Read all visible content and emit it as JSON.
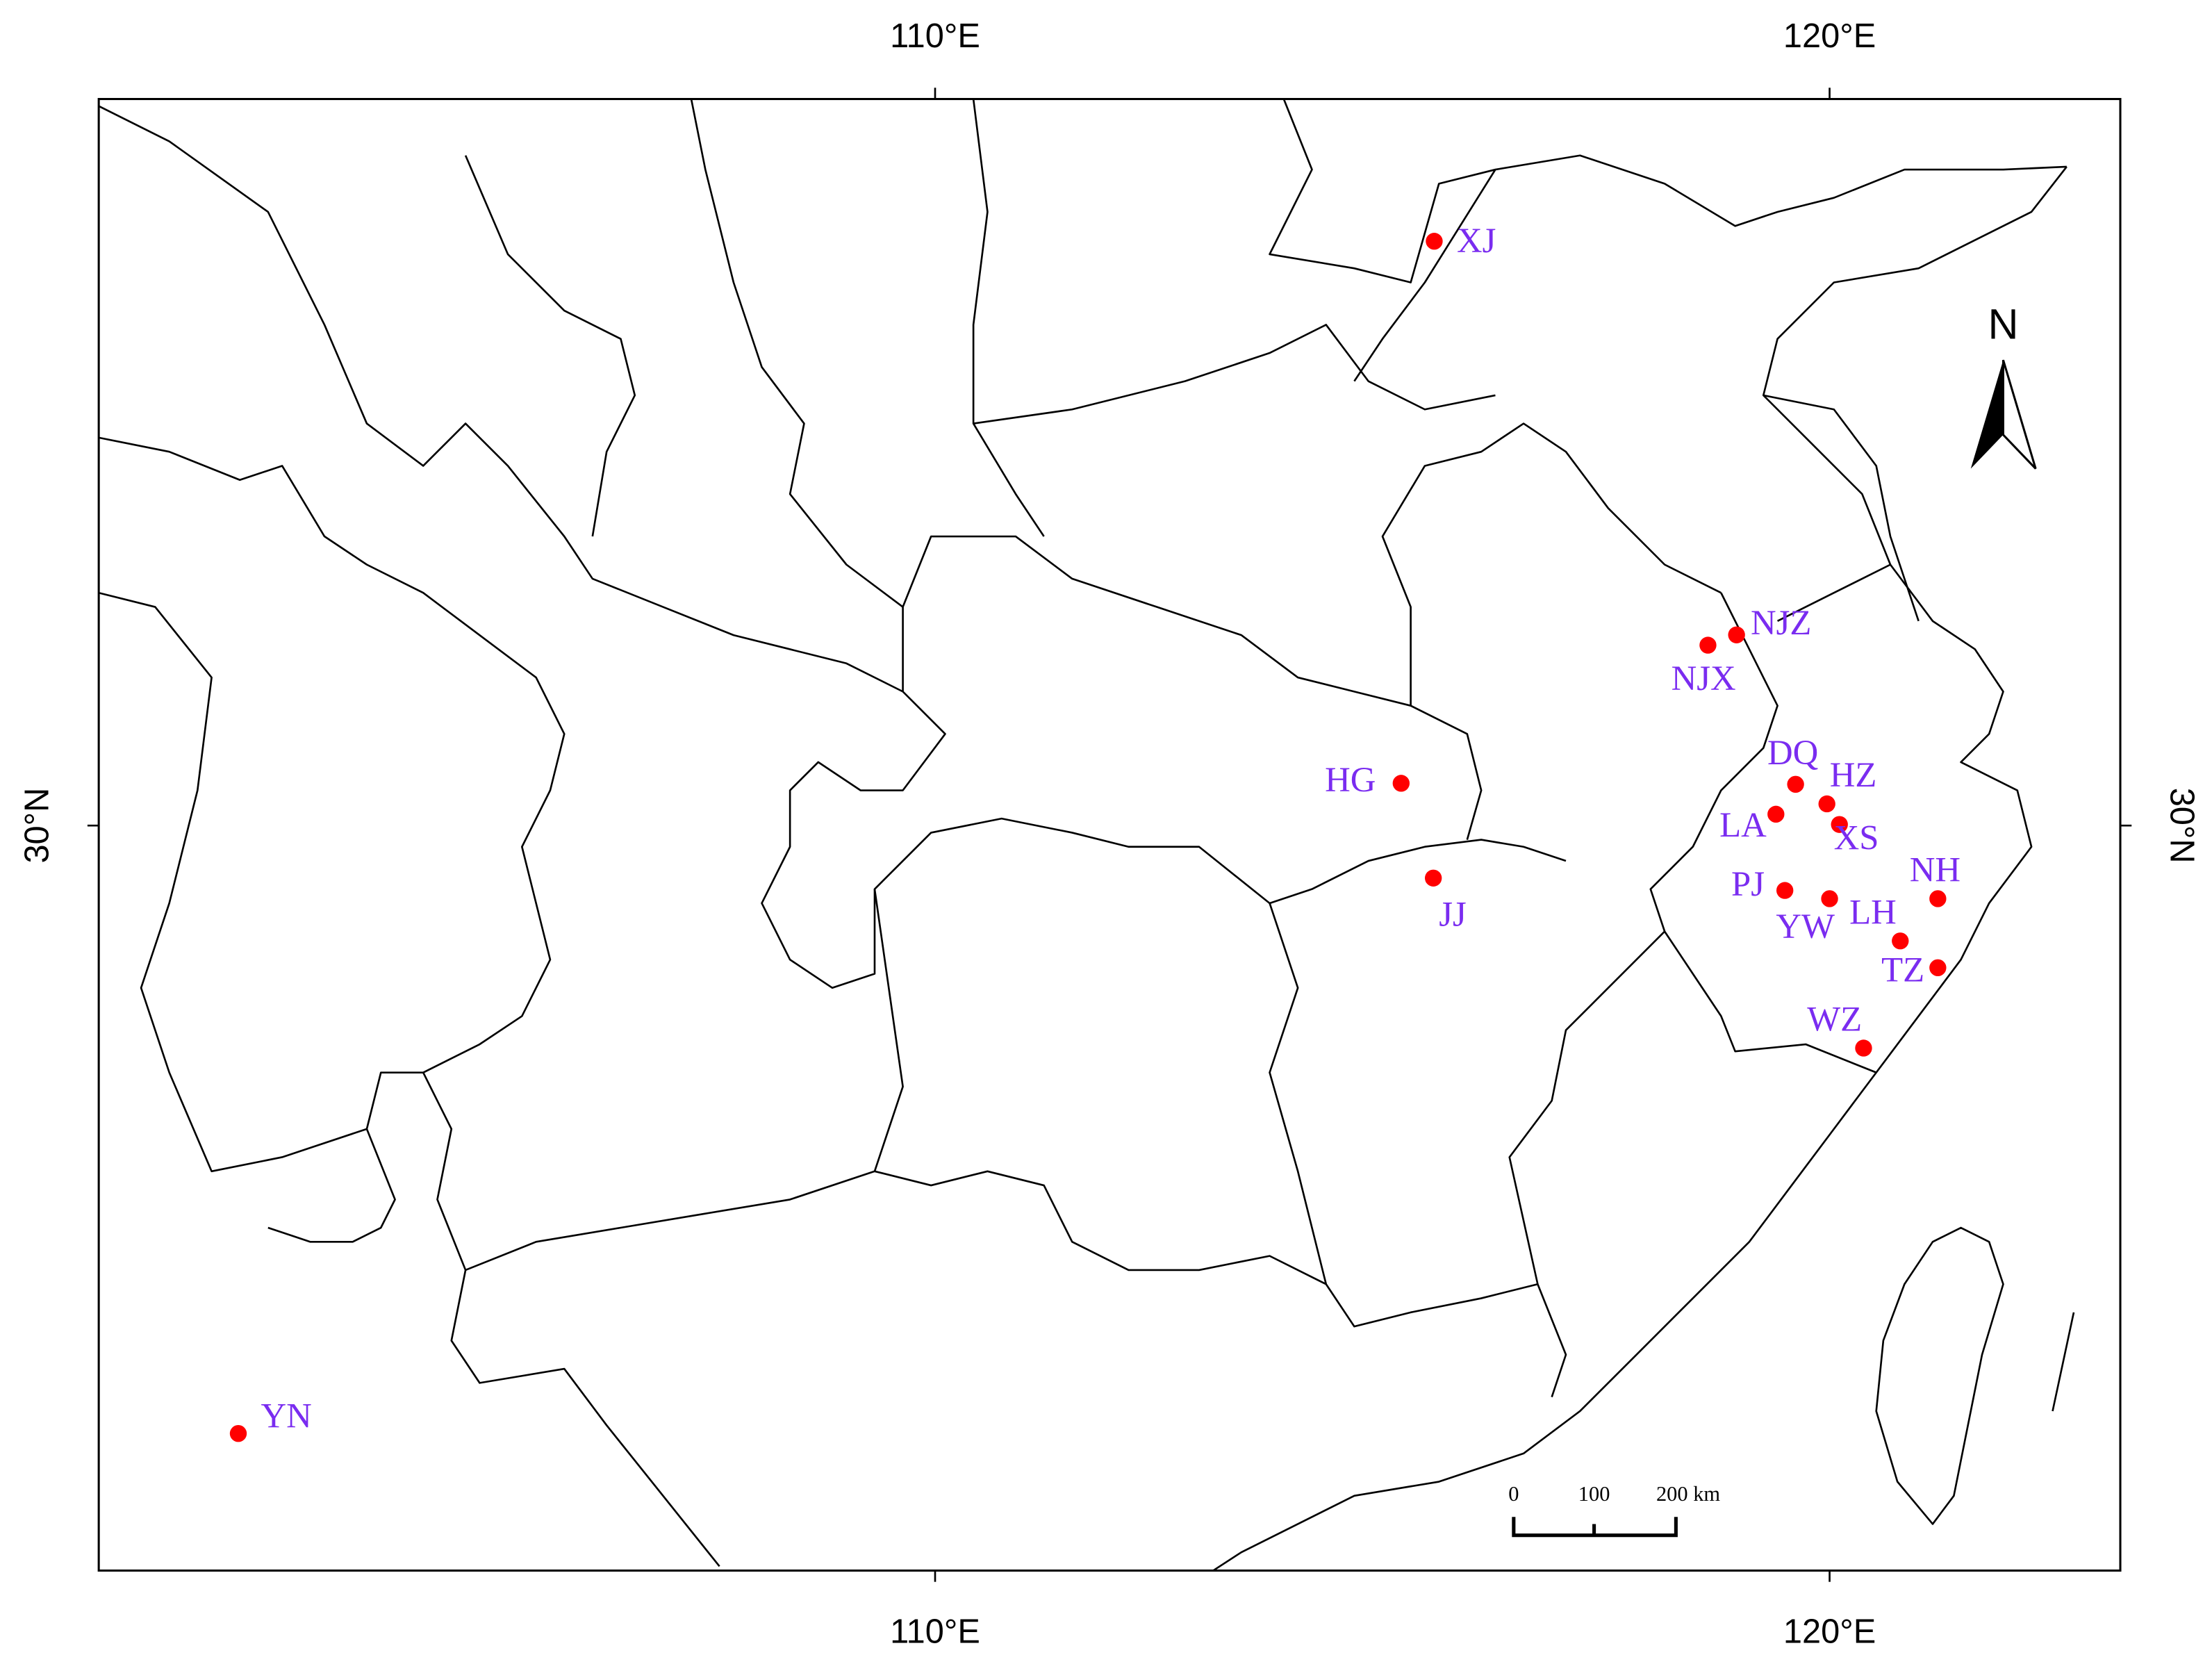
{
  "chart_data": {
    "type": "map",
    "xlim": [
      100.65,
      123.25
    ],
    "ylim": [
      22.77,
      37.05
    ],
    "xticks": [
      {
        "value": 110,
        "label": "110°E"
      },
      {
        "value": 120,
        "label": "120°E"
      }
    ],
    "yticks": [
      {
        "value": 30,
        "label": "30°N"
      }
    ],
    "marker_color": "#ff0000",
    "label_color": "#7a2cf0",
    "sites": [
      {
        "name": "XJ",
        "lon": 115.58,
        "lat": 35.67
      },
      {
        "name": "NJZ",
        "lon": 118.96,
        "lat": 31.85
      },
      {
        "name": "NJX",
        "lon": 118.64,
        "lat": 31.75
      },
      {
        "name": "DQ",
        "lon": 119.62,
        "lat": 30.4
      },
      {
        "name": "HZ",
        "lon": 119.97,
        "lat": 30.21
      },
      {
        "name": "LA",
        "lon": 119.4,
        "lat": 30.11
      },
      {
        "name": "XS",
        "lon": 120.11,
        "lat": 30.01
      },
      {
        "name": "HG",
        "lon": 115.21,
        "lat": 30.41
      },
      {
        "name": "JJ",
        "lon": 115.57,
        "lat": 29.49
      },
      {
        "name": "PJ",
        "lon": 119.5,
        "lat": 29.37
      },
      {
        "name": "YW",
        "lon": 120.0,
        "lat": 29.29
      },
      {
        "name": "NH",
        "lon": 121.21,
        "lat": 29.29
      },
      {
        "name": "LH",
        "lon": 120.79,
        "lat": 28.88
      },
      {
        "name": "TZ",
        "lon": 121.21,
        "lat": 28.62
      },
      {
        "name": "WZ",
        "lon": 120.38,
        "lat": 27.84
      },
      {
        "name": "YN",
        "lon": 102.21,
        "lat": 24.1
      }
    ],
    "north_arrow": "N",
    "scale_bar": [
      "0",
      "100",
      "200 km"
    ]
  }
}
